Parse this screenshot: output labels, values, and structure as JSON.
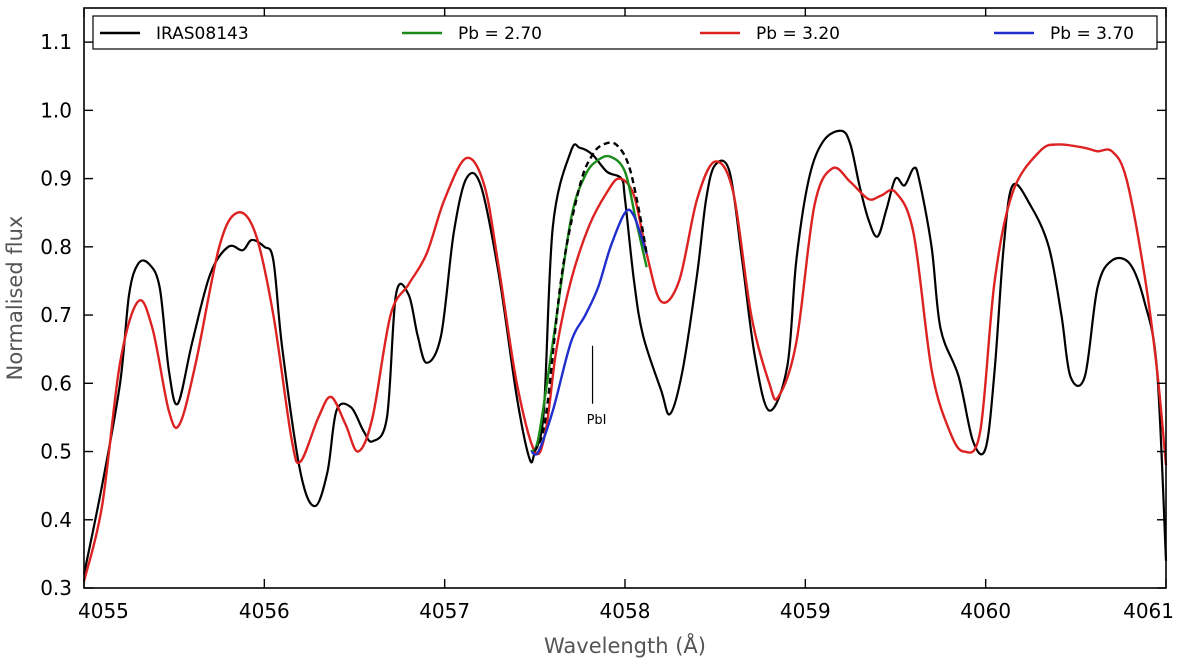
{
  "chart_data": {
    "type": "line",
    "title": "",
    "xlabel": "Wavelength (Å)",
    "ylabel": "Normalised flux",
    "xlim": [
      4055,
      4061
    ],
    "ylim": [
      0.3,
      1.15
    ],
    "xticks": [
      4055,
      4056,
      4057,
      4058,
      4059,
      4060,
      4061
    ],
    "xtick_labels": [
      "4055",
      "4056",
      "4057",
      "4058",
      "4059",
      "4060",
      "4061"
    ],
    "yticks": [
      0.3,
      0.4,
      0.5,
      0.6,
      0.7,
      0.8,
      0.9,
      1.0,
      1.1
    ],
    "ytick_labels": [
      "0.3",
      "0.4",
      "0.5",
      "0.6",
      "0.7",
      "0.8",
      "0.9",
      "1.0",
      "1.1"
    ],
    "grid": false,
    "legend_position": "top",
    "annotation": {
      "text": "PbI",
      "x": 4057.82,
      "y_top": 0.655,
      "y_bottom": 0.57
    },
    "series": [
      {
        "name": "IRAS08143",
        "color": "#000000",
        "style": "solid",
        "points": [
          [
            4055.0,
            0.32
          ],
          [
            4055.1,
            0.45
          ],
          [
            4055.2,
            0.6
          ],
          [
            4055.25,
            0.73
          ],
          [
            4055.3,
            0.775
          ],
          [
            4055.36,
            0.775
          ],
          [
            4055.42,
            0.74
          ],
          [
            4055.47,
            0.62
          ],
          [
            4055.52,
            0.57
          ],
          [
            4055.6,
            0.66
          ],
          [
            4055.7,
            0.76
          ],
          [
            4055.8,
            0.8
          ],
          [
            4055.88,
            0.795
          ],
          [
            4055.93,
            0.81
          ],
          [
            4056.0,
            0.8
          ],
          [
            4056.05,
            0.78
          ],
          [
            4056.1,
            0.65
          ],
          [
            4056.2,
            0.47
          ],
          [
            4056.28,
            0.42
          ],
          [
            4056.35,
            0.47
          ],
          [
            4056.4,
            0.56
          ],
          [
            4056.48,
            0.565
          ],
          [
            4056.55,
            0.53
          ],
          [
            4056.6,
            0.515
          ],
          [
            4056.68,
            0.55
          ],
          [
            4056.73,
            0.73
          ],
          [
            4056.8,
            0.73
          ],
          [
            4056.85,
            0.67
          ],
          [
            4056.9,
            0.63
          ],
          [
            4056.98,
            0.67
          ],
          [
            4057.05,
            0.82
          ],
          [
            4057.12,
            0.9
          ],
          [
            4057.2,
            0.89
          ],
          [
            4057.3,
            0.76
          ],
          [
            4057.4,
            0.58
          ],
          [
            4057.47,
            0.49
          ],
          [
            4057.5,
            0.5
          ],
          [
            4057.55,
            0.56
          ],
          [
            4057.6,
            0.83
          ],
          [
            4057.7,
            0.94
          ],
          [
            4057.75,
            0.945
          ],
          [
            4057.82,
            0.935
          ],
          [
            4057.9,
            0.91
          ],
          [
            4057.98,
            0.9
          ],
          [
            4058.0,
            0.87
          ],
          [
            4058.05,
            0.75
          ],
          [
            4058.1,
            0.67
          ],
          [
            4058.2,
            0.59
          ],
          [
            4058.25,
            0.555
          ],
          [
            4058.32,
            0.62
          ],
          [
            4058.4,
            0.76
          ],
          [
            4058.45,
            0.87
          ],
          [
            4058.5,
            0.92
          ],
          [
            4058.58,
            0.91
          ],
          [
            4058.65,
            0.78
          ],
          [
            4058.72,
            0.64
          ],
          [
            4058.8,
            0.56
          ],
          [
            4058.9,
            0.625
          ],
          [
            4058.95,
            0.78
          ],
          [
            4059.02,
            0.9
          ],
          [
            4059.1,
            0.955
          ],
          [
            4059.2,
            0.97
          ],
          [
            4059.25,
            0.95
          ],
          [
            4059.3,
            0.89
          ],
          [
            4059.35,
            0.84
          ],
          [
            4059.4,
            0.815
          ],
          [
            4059.45,
            0.855
          ],
          [
            4059.5,
            0.9
          ],
          [
            4059.55,
            0.89
          ],
          [
            4059.6,
            0.915
          ],
          [
            4059.63,
            0.9
          ],
          [
            4059.7,
            0.8
          ],
          [
            4059.75,
            0.68
          ],
          [
            4059.85,
            0.61
          ],
          [
            4059.93,
            0.515
          ],
          [
            4060.0,
            0.505
          ],
          [
            4060.05,
            0.62
          ],
          [
            4060.1,
            0.8
          ],
          [
            4060.15,
            0.89
          ],
          [
            4060.25,
            0.86
          ],
          [
            4060.35,
            0.8
          ],
          [
            4060.42,
            0.7
          ],
          [
            4060.47,
            0.61
          ],
          [
            4060.55,
            0.61
          ],
          [
            4060.62,
            0.74
          ],
          [
            4060.7,
            0.78
          ],
          [
            4060.8,
            0.775
          ],
          [
            4060.88,
            0.72
          ],
          [
            4060.95,
            0.62
          ],
          [
            4061.0,
            0.34
          ]
        ]
      },
      {
        "name": "Pb = 2.70",
        "color": "#1a8a1a",
        "style": "solid",
        "points": [
          [
            4057.48,
            0.5
          ],
          [
            4057.52,
            0.52
          ],
          [
            4057.6,
            0.66
          ],
          [
            4057.7,
            0.84
          ],
          [
            4057.78,
            0.905
          ],
          [
            4057.85,
            0.927
          ],
          [
            4057.92,
            0.932
          ],
          [
            4058.0,
            0.91
          ],
          [
            4058.06,
            0.84
          ],
          [
            4058.12,
            0.77
          ]
        ]
      },
      {
        "name": "Pb = 3.20",
        "color": "#dd2222",
        "style": "solid",
        "points": [
          [
            4055.0,
            0.31
          ],
          [
            4055.1,
            0.42
          ],
          [
            4055.2,
            0.63
          ],
          [
            4055.3,
            0.72
          ],
          [
            4055.38,
            0.68
          ],
          [
            4055.47,
            0.56
          ],
          [
            4055.53,
            0.54
          ],
          [
            4055.62,
            0.63
          ],
          [
            4055.75,
            0.8
          ],
          [
            4055.85,
            0.85
          ],
          [
            4055.95,
            0.82
          ],
          [
            4056.05,
            0.7
          ],
          [
            4056.15,
            0.52
          ],
          [
            4056.2,
            0.485
          ],
          [
            4056.3,
            0.55
          ],
          [
            4056.37,
            0.58
          ],
          [
            4056.45,
            0.54
          ],
          [
            4056.52,
            0.5
          ],
          [
            4056.6,
            0.55
          ],
          [
            4056.7,
            0.7
          ],
          [
            4056.8,
            0.745
          ],
          [
            4056.9,
            0.79
          ],
          [
            4057.0,
            0.87
          ],
          [
            4057.12,
            0.93
          ],
          [
            4057.22,
            0.89
          ],
          [
            4057.3,
            0.77
          ],
          [
            4057.4,
            0.6
          ],
          [
            4057.5,
            0.5
          ],
          [
            4057.56,
            0.53
          ],
          [
            4057.62,
            0.65
          ],
          [
            4057.7,
            0.75
          ],
          [
            4057.8,
            0.83
          ],
          [
            4057.9,
            0.88
          ],
          [
            4057.97,
            0.9
          ],
          [
            4058.05,
            0.875
          ],
          [
            4058.12,
            0.79
          ],
          [
            4058.2,
            0.72
          ],
          [
            4058.3,
            0.75
          ],
          [
            4058.4,
            0.87
          ],
          [
            4058.5,
            0.925
          ],
          [
            4058.6,
            0.88
          ],
          [
            4058.7,
            0.7
          ],
          [
            4058.8,
            0.6
          ],
          [
            4058.85,
            0.58
          ],
          [
            4058.95,
            0.66
          ],
          [
            4059.05,
            0.86
          ],
          [
            4059.15,
            0.915
          ],
          [
            4059.25,
            0.895
          ],
          [
            4059.35,
            0.87
          ],
          [
            4059.42,
            0.875
          ],
          [
            4059.5,
            0.88
          ],
          [
            4059.6,
            0.82
          ],
          [
            4059.7,
            0.62
          ],
          [
            4059.8,
            0.53
          ],
          [
            4059.88,
            0.5
          ],
          [
            4059.97,
            0.53
          ],
          [
            4060.05,
            0.75
          ],
          [
            4060.15,
            0.88
          ],
          [
            4060.3,
            0.94
          ],
          [
            4060.4,
            0.95
          ],
          [
            4060.55,
            0.945
          ],
          [
            4060.62,
            0.94
          ],
          [
            4060.7,
            0.94
          ],
          [
            4060.78,
            0.9
          ],
          [
            4060.88,
            0.76
          ],
          [
            4060.95,
            0.62
          ],
          [
            4061.0,
            0.48
          ]
        ]
      },
      {
        "name": "Pb = 3.70",
        "color": "#1f2ecc",
        "style": "solid",
        "points": [
          [
            4057.48,
            0.5
          ],
          [
            4057.52,
            0.5
          ],
          [
            4057.6,
            0.56
          ],
          [
            4057.7,
            0.66
          ],
          [
            4057.78,
            0.7
          ],
          [
            4057.85,
            0.74
          ],
          [
            4057.92,
            0.8
          ],
          [
            4058.0,
            0.85
          ],
          [
            4058.05,
            0.845
          ],
          [
            4058.12,
            0.79
          ]
        ]
      },
      {
        "name": "",
        "color": "#000000",
        "style": "dashed",
        "points": [
          [
            4057.5,
            0.5
          ],
          [
            4057.56,
            0.55
          ],
          [
            4057.65,
            0.76
          ],
          [
            4057.75,
            0.89
          ],
          [
            4057.82,
            0.935
          ],
          [
            4057.88,
            0.95
          ],
          [
            4057.95,
            0.95
          ],
          [
            4058.02,
            0.92
          ],
          [
            4058.08,
            0.85
          ],
          [
            4058.12,
            0.79
          ]
        ]
      }
    ]
  }
}
